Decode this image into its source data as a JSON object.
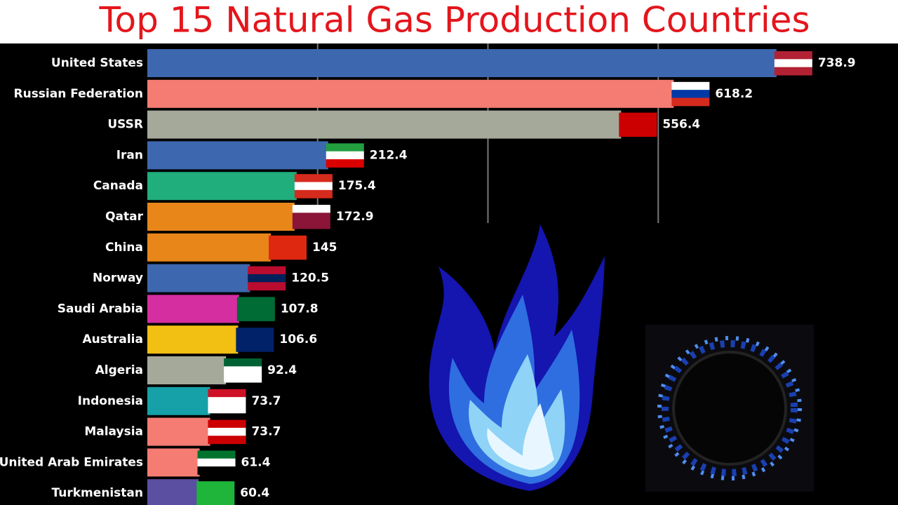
{
  "chart_data": {
    "type": "bar",
    "title": "Top 15 Natural Gas Production Countries",
    "categories": [
      "United States",
      "Russian Federation",
      "USSR",
      "Iran",
      "Canada",
      "Qatar",
      "China",
      "Norway",
      "Saudi Arabia",
      "Australia",
      "Algeria",
      "Indonesia",
      "Malaysia",
      "United Arab Emirates",
      "Turkmenistan"
    ],
    "values": [
      738.9,
      618.2,
      556.4,
      212.4,
      175.4,
      172.9,
      145,
      120.5,
      107.8,
      106.6,
      92.4,
      73.7,
      73.7,
      61.4,
      60.4
    ],
    "colors": [
      "#3d67ae",
      "#f47c72",
      "#a5a99a",
      "#3d67ae",
      "#1fae7c",
      "#e8861a",
      "#e8861a",
      "#3d67ae",
      "#d42ea0",
      "#f2bf13",
      "#a5a99a",
      "#16a0a8",
      "#f47c72",
      "#f47c72",
      "#5a4fa0"
    ],
    "xlim": [
      0,
      800
    ],
    "xticks": [
      200,
      400,
      600
    ],
    "grid": true
  }
}
